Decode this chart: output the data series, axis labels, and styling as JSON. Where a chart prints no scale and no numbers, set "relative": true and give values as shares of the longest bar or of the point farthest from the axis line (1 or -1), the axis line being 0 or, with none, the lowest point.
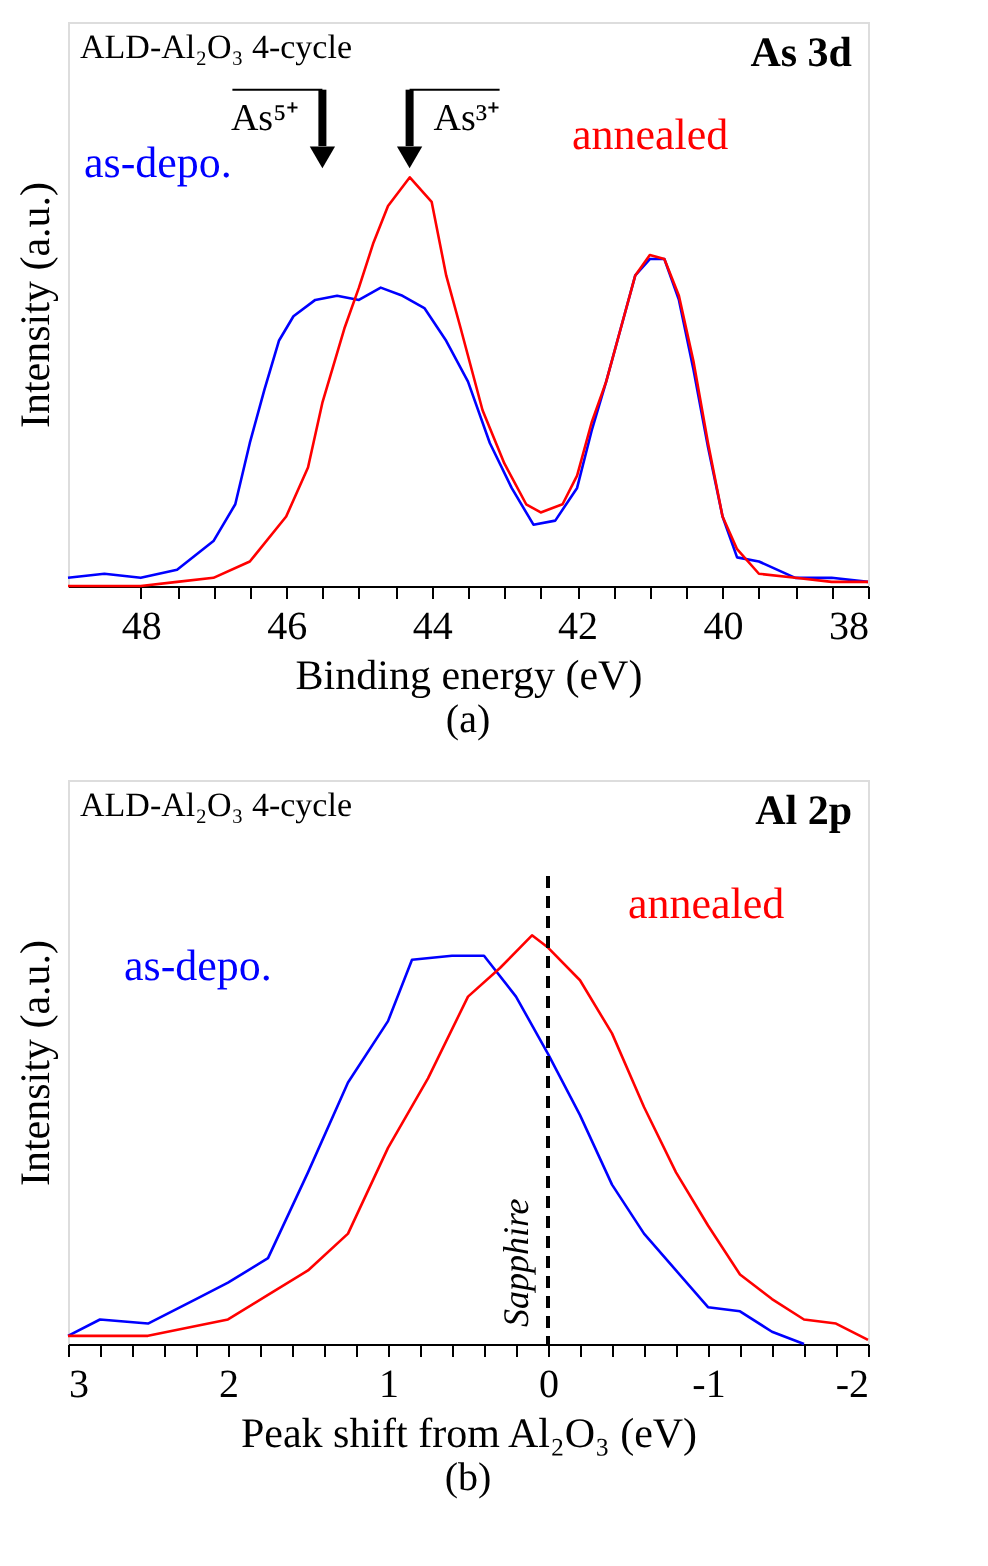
{
  "chart_data": [
    {
      "type": "line",
      "title": "(a)",
      "xlabel": "Binding energy (eV)",
      "ylabel": "Intensity (a.u.)",
      "relative": true,
      "grid": false,
      "legend": false,
      "marker": "none",
      "line_style": "solid",
      "xlim": [
        49,
        38
      ],
      "xticks": [
        48,
        {
          "value": 47.5,
          "label": null
        },
        {
          "value": 47,
          "label": null
        },
        {
          "value": 46.5,
          "label": null
        },
        46,
        {
          "value": 45.5,
          "label": null
        },
        {
          "value": 45,
          "label": null
        },
        {
          "value": 44.5,
          "label": null
        },
        44,
        {
          "value": 43.5,
          "label": null
        },
        {
          "value": 43,
          "label": null
        },
        {
          "value": 42.5,
          "label": null
        },
        42,
        {
          "value": 41.5,
          "label": null
        },
        {
          "value": 41,
          "label": null
        },
        {
          "value": 40.5,
          "label": null
        },
        40,
        {
          "value": 39.5,
          "label": null
        },
        {
          "value": 39,
          "label": null
        },
        {
          "value": 38.5,
          "label": null
        },
        38
      ],
      "annotations": [
        "ALD-Al₂O₃ 4-cycle",
        "As 3d",
        "As⁵⁺",
        "As³⁺"
      ],
      "series": [
        {
          "name": "as-depo.",
          "color": "#0000ff",
          "x": [
            49,
            48.5,
            48,
            47.5,
            47.0,
            46.7,
            46.5,
            46.3,
            46.1,
            45.9,
            45.6,
            45.3,
            45.0,
            44.7,
            44.4,
            44.1,
            43.8,
            43.5,
            43.2,
            42.9,
            42.6,
            42.3,
            42.0,
            41.8,
            41.6,
            41.4,
            41.2,
            41.0,
            40.8,
            40.6,
            40.4,
            40.2,
            40.0,
            39.8,
            39.5,
            39.0,
            38.5,
            38
          ],
          "values": [
            0.02,
            0.03,
            0.02,
            0.04,
            0.11,
            0.2,
            0.35,
            0.48,
            0.6,
            0.66,
            0.7,
            0.71,
            0.7,
            0.73,
            0.71,
            0.68,
            0.6,
            0.5,
            0.35,
            0.24,
            0.15,
            0.16,
            0.24,
            0.38,
            0.5,
            0.63,
            0.76,
            0.8,
            0.8,
            0.7,
            0.53,
            0.34,
            0.17,
            0.07,
            0.06,
            0.02,
            0.02,
            0.01
          ]
        },
        {
          "name": "annealed",
          "color": "#ff0000",
          "x": [
            49,
            48,
            47.5,
            47.0,
            46.5,
            46.0,
            45.7,
            45.5,
            45.2,
            45.0,
            44.8,
            44.6,
            44.3,
            44.0,
            43.8,
            43.6,
            43.3,
            43.0,
            42.7,
            42.5,
            42.2,
            42.0,
            41.8,
            41.6,
            41.4,
            41.2,
            41.0,
            40.8,
            40.6,
            40.4,
            40.2,
            40.0,
            39.8,
            39.5,
            39.0,
            38.5,
            38
          ],
          "values": [
            0.0,
            0.0,
            0.01,
            0.02,
            0.06,
            0.17,
            0.29,
            0.45,
            0.63,
            0.73,
            0.84,
            0.93,
            1.0,
            0.94,
            0.76,
            0.63,
            0.43,
            0.3,
            0.2,
            0.18,
            0.2,
            0.27,
            0.4,
            0.5,
            0.63,
            0.76,
            0.81,
            0.8,
            0.71,
            0.55,
            0.35,
            0.17,
            0.09,
            0.03,
            0.02,
            0.01,
            0.01
          ]
        }
      ]
    },
    {
      "type": "line",
      "title": "(b)",
      "xlabel": "Peak shift from Al₂O₃ (eV)",
      "ylabel": "Intensity (a.u.)",
      "relative": true,
      "grid": false,
      "legend": false,
      "marker": "none",
      "line_style": "solid",
      "xlim": [
        3,
        -2
      ],
      "xticks": [
        3,
        {
          "value": 2.8,
          "label": null
        },
        {
          "value": 2.6,
          "label": null
        },
        {
          "value": 2.4,
          "label": null
        },
        {
          "value": 2.2,
          "label": null
        },
        2,
        {
          "value": 1.8,
          "label": null
        },
        {
          "value": 1.6,
          "label": null
        },
        {
          "value": 1.4,
          "label": null
        },
        {
          "value": 1.2,
          "label": null
        },
        1,
        {
          "value": 0.8,
          "label": null
        },
        {
          "value": 0.6,
          "label": null
        },
        {
          "value": 0.4,
          "label": null
        },
        {
          "value": 0.2,
          "label": null
        },
        0,
        {
          "value": -0.2,
          "label": null
        },
        {
          "value": -0.4,
          "label": null
        },
        {
          "value": -0.6,
          "label": null
        },
        {
          "value": -0.8,
          "label": null
        },
        -1,
        {
          "value": -1.2,
          "label": null
        },
        {
          "value": -1.4,
          "label": null
        },
        {
          "value": -1.6,
          "label": null
        },
        {
          "value": -1.8,
          "label": null
        },
        -2
      ],
      "annotations": [
        "ALD-Al₂O₃ 4-cycle",
        "Al 2p"
      ],
      "ref_lines": [
        {
          "axis": "x",
          "value": 0,
          "label": "Sapphire",
          "color": "#000000",
          "line_style": "dashed"
        }
      ],
      "series": [
        {
          "name": "as-depo.",
          "color": "#0000ff",
          "x": [
            3.0,
            2.8,
            2.5,
            2.2,
            2.0,
            1.75,
            1.5,
            1.25,
            1.0,
            0.85,
            0.6,
            0.4,
            0.2,
            0.0,
            -0.2,
            -0.4,
            -0.6,
            -0.8,
            -1.0,
            -1.2,
            -1.4,
            -1.6
          ],
          "values": [
            0.02,
            0.06,
            0.05,
            0.11,
            0.15,
            0.21,
            0.42,
            0.64,
            0.79,
            0.94,
            0.95,
            0.95,
            0.85,
            0.71,
            0.56,
            0.39,
            0.27,
            0.18,
            0.09,
            0.08,
            0.03,
            0.0
          ]
        },
        {
          "name": "annealed",
          "color": "#ff0000",
          "x": [
            3.0,
            2.5,
            2.0,
            1.75,
            1.5,
            1.25,
            1.0,
            0.75,
            0.5,
            0.3,
            0.1,
            0.0,
            -0.2,
            -0.4,
            -0.6,
            -0.8,
            -1.0,
            -1.2,
            -1.4,
            -1.6,
            -1.8,
            -2.0
          ],
          "values": [
            0.02,
            0.02,
            0.06,
            0.12,
            0.18,
            0.27,
            0.48,
            0.65,
            0.85,
            0.92,
            1.0,
            0.97,
            0.89,
            0.76,
            0.58,
            0.42,
            0.29,
            0.17,
            0.11,
            0.06,
            0.05,
            0.01
          ]
        }
      ]
    }
  ]
}
